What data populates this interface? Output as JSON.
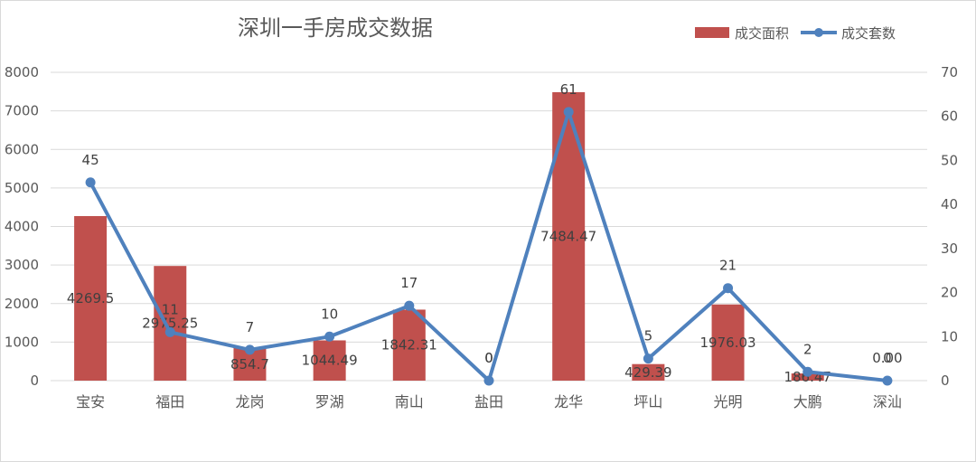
{
  "chart_data": {
    "type": "bar+line",
    "title": "深圳一手房成交数据",
    "categories": [
      "宝安",
      "福田",
      "龙岗",
      "罗湖",
      "南山",
      "盐田",
      "龙华",
      "坪山",
      "光明",
      "大鹏",
      "深汕"
    ],
    "series": [
      {
        "name": "成交面积",
        "type": "bar",
        "axis": "left",
        "color": "#C0504D",
        "values": [
          4269.5,
          2975.25,
          854.7,
          1044.49,
          1842.31,
          0,
          7484.47,
          429.39,
          1976.03,
          186.47,
          0
        ],
        "labels": [
          "4269.5",
          "2975.25",
          "854.7",
          "1044.49",
          "1842.31",
          "0",
          "7484.47",
          "429.39",
          "1976.03",
          "186.47",
          "0.00"
        ]
      },
      {
        "name": "成交套数",
        "type": "line",
        "axis": "right",
        "color": "#4F81BD",
        "values": [
          45,
          11,
          7,
          10,
          17,
          0,
          61,
          5,
          21,
          2,
          0
        ],
        "labels": [
          "45",
          "11",
          "7",
          "10",
          "17",
          "0",
          "61",
          "5",
          "21",
          "2",
          "0"
        ]
      }
    ],
    "y_left": {
      "min": 0,
      "max": 8000,
      "step": 1000,
      "ticks": [
        "0",
        "1000",
        "2000",
        "3000",
        "4000",
        "5000",
        "6000",
        "7000",
        "8000"
      ]
    },
    "y_right": {
      "min": 0,
      "max": 70,
      "step": 10,
      "ticks": [
        "0",
        "10",
        "20",
        "30",
        "40",
        "50",
        "60",
        "70"
      ]
    },
    "grid": true,
    "legend_position": "top-right"
  }
}
